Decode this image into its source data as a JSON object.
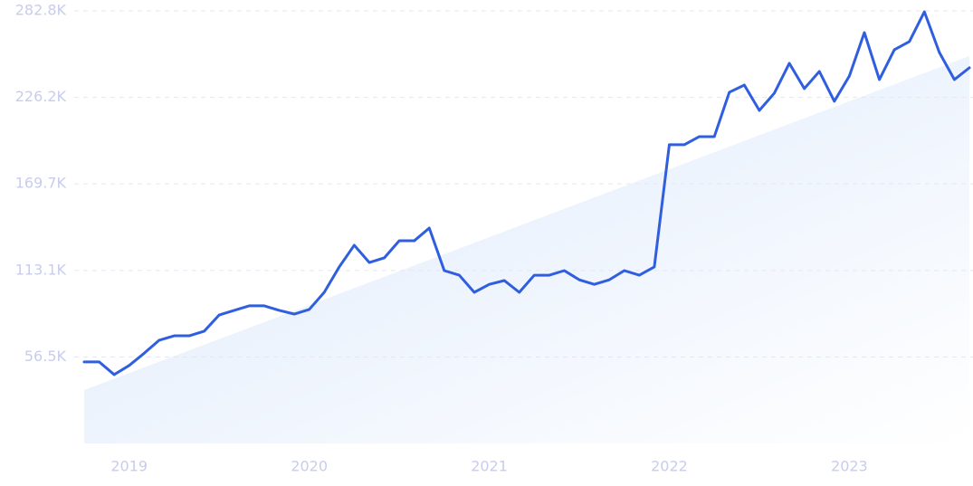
{
  "chart_data": {
    "type": "line",
    "categories": [
      null,
      null,
      null,
      "2019",
      null,
      null,
      null,
      null,
      null,
      null,
      null,
      null,
      null,
      null,
      null,
      "2020",
      null,
      null,
      null,
      null,
      null,
      null,
      null,
      null,
      null,
      null,
      null,
      "2021",
      null,
      null,
      null,
      null,
      null,
      null,
      null,
      null,
      null,
      null,
      null,
      "2022",
      null,
      null,
      null,
      null,
      null,
      null,
      null,
      null,
      null,
      null,
      null,
      "2023",
      null,
      null,
      null,
      null,
      null,
      null,
      null,
      null
    ],
    "series": [
      {
        "color": "#2f5fde",
        "values": [
          53.3,
          53.3,
          45,
          51,
          59,
          67.5,
          70.4,
          70.4,
          73.4,
          84,
          87,
          90,
          90,
          87,
          84.6,
          87.6,
          98.8,
          115.4,
          129.6,
          118.3,
          121.3,
          132.5,
          132.5,
          140.8,
          113,
          110,
          98.8,
          104,
          106.5,
          98.8,
          110,
          110,
          113,
          107,
          104,
          107,
          113,
          110,
          115.4,
          195.3,
          195.3,
          200.6,
          200.6,
          229.6,
          234.3,
          217.7,
          229,
          248.5,
          232,
          243.2,
          223.7,
          240.2,
          268.6,
          237.9,
          257.4,
          262.7,
          282.2,
          255.6,
          237.9,
          245.6
        ]
      }
    ],
    "trend": {
      "values": [
        34.9,
        253.3
      ],
      "color": "#dde9fb"
    },
    "ylim": [
      0,
      282.8
    ],
    "yticks": [
      {
        "value": 56.5,
        "label": "56.5K"
      },
      {
        "value": 113.1,
        "label": "113.1K"
      },
      {
        "value": 169.7,
        "label": "169.7K"
      },
      {
        "value": 226.2,
        "label": "226.2K"
      },
      {
        "value": 282.8,
        "label": "282.8K"
      }
    ],
    "grid": true
  }
}
